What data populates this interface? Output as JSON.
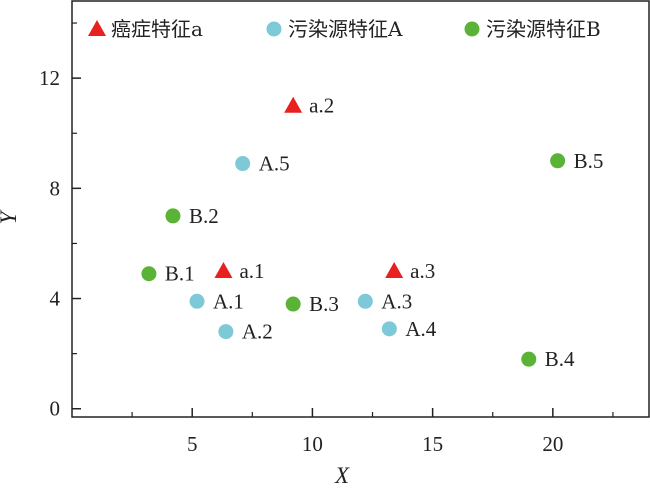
{
  "chart_data": {
    "type": "scatter",
    "xlabel": "X",
    "ylabel": "Y",
    "xlim": [
      0,
      24
    ],
    "ylim": [
      -0.3,
      14.8
    ],
    "x_ticks": [
      5,
      10,
      15,
      20
    ],
    "y_ticks": [
      0,
      4,
      8,
      12
    ],
    "grid": false,
    "legend_placement": "top",
    "series": [
      {
        "name": "癌症特征a",
        "marker": "triangle",
        "color": "#e8201f",
        "points": [
          {
            "x": 6.3,
            "y": 5.0,
            "label": "a.1"
          },
          {
            "x": 9.2,
            "y": 11.0,
            "label": "a.2"
          },
          {
            "x": 13.4,
            "y": 5.0,
            "label": "a.3"
          }
        ]
      },
      {
        "name": "污染源特征A",
        "marker": "circle",
        "color": "#7ec9d8",
        "points": [
          {
            "x": 5.2,
            "y": 3.9,
            "label": "A.1"
          },
          {
            "x": 6.4,
            "y": 2.8,
            "label": "A.2"
          },
          {
            "x": 12.2,
            "y": 3.9,
            "label": "A.3"
          },
          {
            "x": 13.2,
            "y": 2.9,
            "label": "A.4"
          },
          {
            "x": 7.1,
            "y": 8.9,
            "label": "A.5"
          }
        ]
      },
      {
        "name": "污染源特征B",
        "marker": "circle",
        "color": "#5ab336",
        "points": [
          {
            "x": 3.2,
            "y": 4.9,
            "label": "B.1"
          },
          {
            "x": 4.2,
            "y": 7.0,
            "label": "B.2"
          },
          {
            "x": 9.2,
            "y": 3.8,
            "label": "B.3"
          },
          {
            "x": 19.0,
            "y": 1.8,
            "label": "B.4"
          },
          {
            "x": 20.2,
            "y": 9.0,
            "label": "B.5"
          }
        ]
      }
    ]
  }
}
